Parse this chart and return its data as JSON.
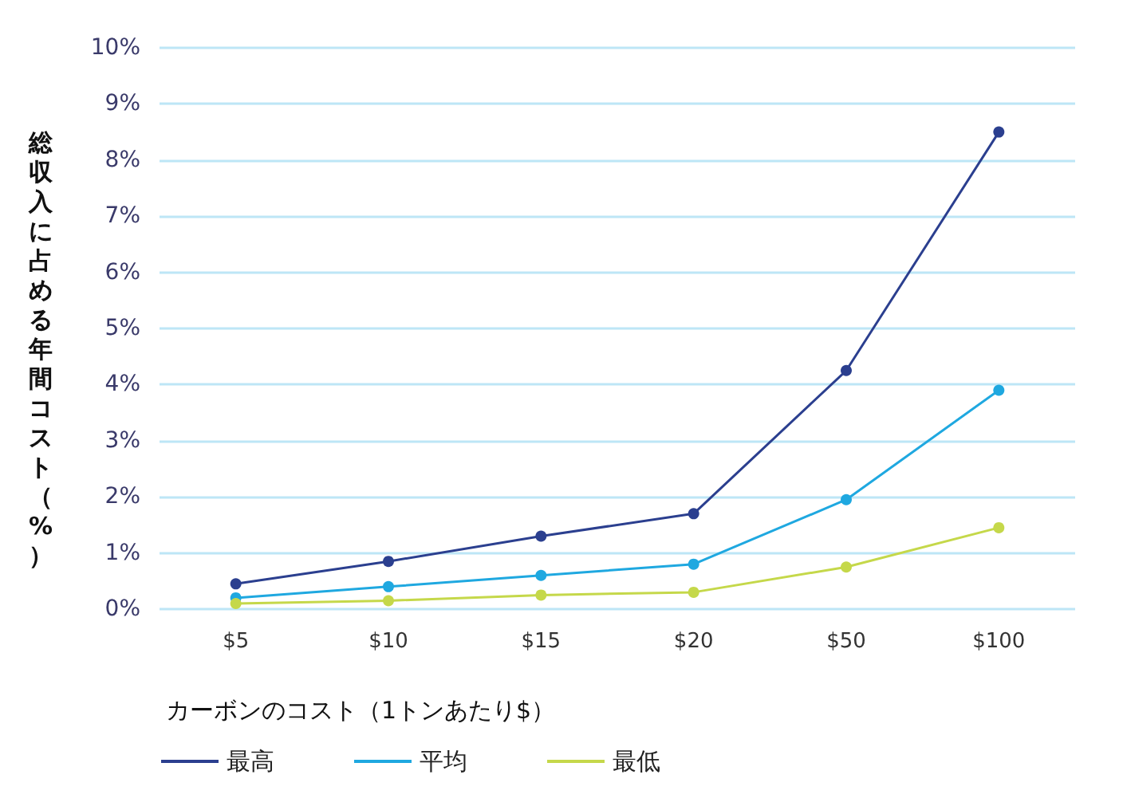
{
  "chart_data": {
    "type": "line",
    "xlabel": "カーボンのコスト（1トンあたり$）",
    "ylabel": "総収入に占める年間コスト（%）",
    "categories": [
      "$5",
      "$10",
      "$15",
      "$20",
      "$50",
      "$100"
    ],
    "series": [
      {
        "name": "最高",
        "color": "#2b3f8f",
        "values": [
          0.45,
          0.85,
          1.3,
          1.7,
          4.25,
          8.5
        ]
      },
      {
        "name": "平均",
        "color": "#1fa8e0",
        "values": [
          0.2,
          0.4,
          0.6,
          0.8,
          1.95,
          3.9
        ]
      },
      {
        "name": "最低",
        "color": "#c5d84a",
        "values": [
          0.1,
          0.15,
          0.25,
          0.3,
          0.75,
          1.45
        ]
      }
    ],
    "ylim": [
      0,
      10
    ],
    "yticks": [
      {
        "value": 0,
        "label": "0%"
      },
      {
        "value": 1,
        "label": "1%"
      },
      {
        "value": 2,
        "label": "2%"
      },
      {
        "value": 3,
        "label": "3%"
      },
      {
        "value": 4,
        "label": "4%"
      },
      {
        "value": 5,
        "label": "5%"
      },
      {
        "value": 6,
        "label": "6%"
      },
      {
        "value": 7,
        "label": "7%"
      },
      {
        "value": 8,
        "label": "8%"
      },
      {
        "value": 9,
        "label": "9%"
      },
      {
        "value": 10,
        "label": "10%"
      }
    ],
    "grid": "y",
    "legend": "bottom left",
    "marker": "circle",
    "line_style": "solid"
  }
}
